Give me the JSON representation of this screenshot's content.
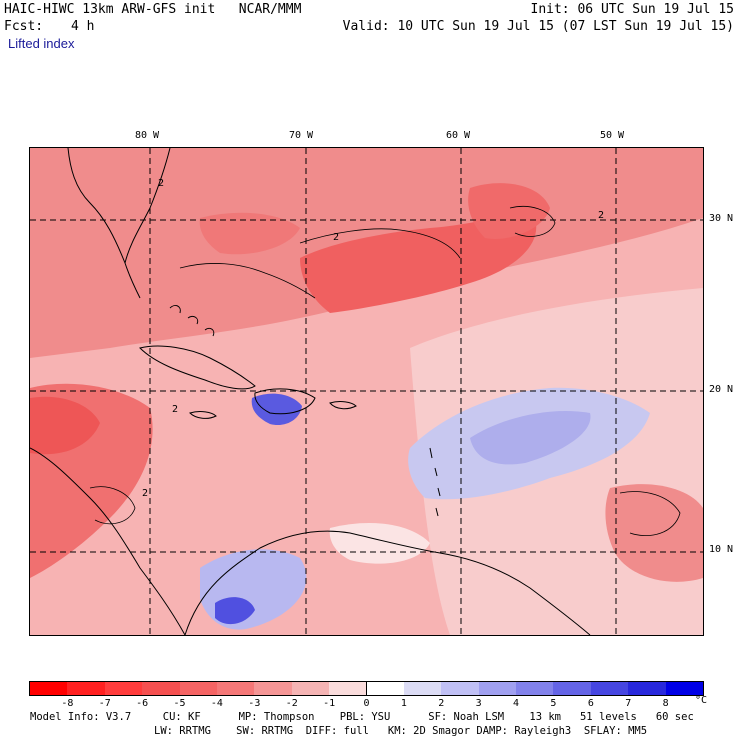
{
  "header": {
    "model_line": "HAIC-HIWC 13km ARW-GFS init   NCAR/MMM",
    "fcst_label": "Fcst:",
    "fcst_value": "4 h",
    "init_line": "Init: 06 UTC Sun 19 Jul 15",
    "valid_line": "Valid: 10 UTC Sun 19 Jul 15 (07 LST Sun 19 Jul 15)",
    "field_name": "Lifted index"
  },
  "map": {
    "lon_labels": [
      "80 W",
      "70 W",
      "60 W",
      "50 W"
    ],
    "lat_labels": [
      "30 N",
      "20 N",
      "10 N"
    ],
    "contour_label": "2",
    "colors": {
      "neg_strong": "#f03c3c",
      "neg_mid": "#f07070",
      "neg_light": "#f5a0a0",
      "neg_faint": "#fbd3d3",
      "pos_faint": "#dcdcf5",
      "pos_light": "#b4b4f0",
      "pos_mid": "#8282e6",
      "pos_strong": "#3c3cdc"
    }
  },
  "colorbar": {
    "unit": "°C",
    "ticks": [
      "-8",
      "-7",
      "-6",
      "-5",
      "-4",
      "-3",
      "-2",
      "-1",
      "0",
      "1",
      "2",
      "3",
      "4",
      "5",
      "6",
      "7",
      "8"
    ],
    "colors": [
      "#ff0000",
      "#ff2020",
      "#ff3c3c",
      "#f55050",
      "#f56464",
      "#f57878",
      "#f59696",
      "#f5b4b4",
      "#fadcdc",
      "#ffffff",
      "#dcdcf5",
      "#c0c0f5",
      "#a0a0f0",
      "#8282eb",
      "#6464e6",
      "#4646e1",
      "#2828dc",
      "#0000e6"
    ]
  },
  "footer": {
    "line1": "Model Info: V3.7     CU: KF      MP: Thompson    PBL: YSU      SF: Noah LSM    13 km   51 levels   60 sec",
    "line2": "LW: RRTMG    SW: RRTMG  DIFF: full   KM: 2D Smagor DAMP: Rayleigh3  SFLAY: MM5"
  }
}
